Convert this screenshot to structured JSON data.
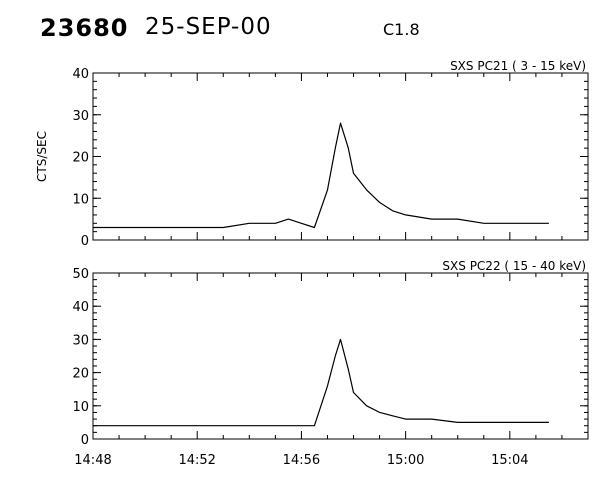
{
  "header": {
    "event_id": "23680",
    "date": "25-SEP-00",
    "goes_class": "C1.8"
  },
  "colors": {
    "ink": "#000000",
    "background": "#ffffff"
  },
  "chart_data": [
    {
      "type": "line",
      "title": "SXS PC21  ( 3 - 15 keV)",
      "ylabel": "CTS/SEC",
      "xlabel": "",
      "xlim": [
        "14:48",
        "15:07"
      ],
      "ylim": [
        0,
        40
      ],
      "yticks": [
        0,
        10,
        20,
        30,
        40
      ],
      "xtick_labels": [
        "14:48",
        "14:52",
        "14:56",
        "15:00",
        "15:04"
      ],
      "grid": false,
      "series": [
        {
          "segments": [
            {
              "x": [
                "14:48",
                "14:49",
                "14:50",
                "14:51",
                "14:52",
                "14:53",
                "14:54",
                "14:55",
                "14:55.5",
                "14:56",
                "14:56.5",
                "14:57",
                "14:57.3",
                "14:57.5",
                "14:57.8",
                "14:58",
                "14:58.5",
                "14:59",
                "14:59.5",
                "15:00",
                "15:01",
                "15:02",
                "15:03",
                "15:04",
                "15:05",
                "15:05.5"
              ],
              "y": [
                3,
                3,
                3,
                3,
                3,
                3,
                4,
                4,
                5,
                4,
                3,
                12,
                22,
                28,
                22,
                16,
                12,
                9,
                7,
                6,
                5,
                5,
                4,
                4,
                4,
                4
              ]
            }
          ]
        }
      ]
    },
    {
      "type": "line",
      "title": "SXS PC22  ( 15 - 40 keV)",
      "ylabel": "",
      "xlabel": "",
      "xlim": [
        "14:48",
        "15:07"
      ],
      "ylim": [
        0,
        50
      ],
      "yticks": [
        0,
        10,
        20,
        30,
        40,
        50
      ],
      "xtick_labels": [
        "14:48",
        "14:52",
        "14:56",
        "15:00",
        "15:04"
      ],
      "grid": false,
      "series": [
        {
          "segments": [
            {
              "x": [
                "14:48",
                "14:49",
                "14:50",
                "14:51",
                "14:52",
                "14:53",
                "14:54",
                "14:55",
                "14:56",
                "14:56.5",
                "14:57",
                "14:57.3",
                "14:57.5",
                "14:57.8",
                "14:58",
                "14:58.5",
                "14:59",
                "14:59.5",
                "15:00",
                "15:01",
                "15:02",
                "15:03",
                "15:04",
                "15:05",
                "15:05.5"
              ],
              "y": [
                4,
                4,
                4,
                4,
                4,
                4,
                4,
                4,
                4,
                4,
                16,
                25,
                30,
                21,
                14,
                10,
                8,
                7,
                6,
                6,
                5,
                5,
                5,
                5,
                5
              ]
            }
          ]
        }
      ]
    }
  ]
}
